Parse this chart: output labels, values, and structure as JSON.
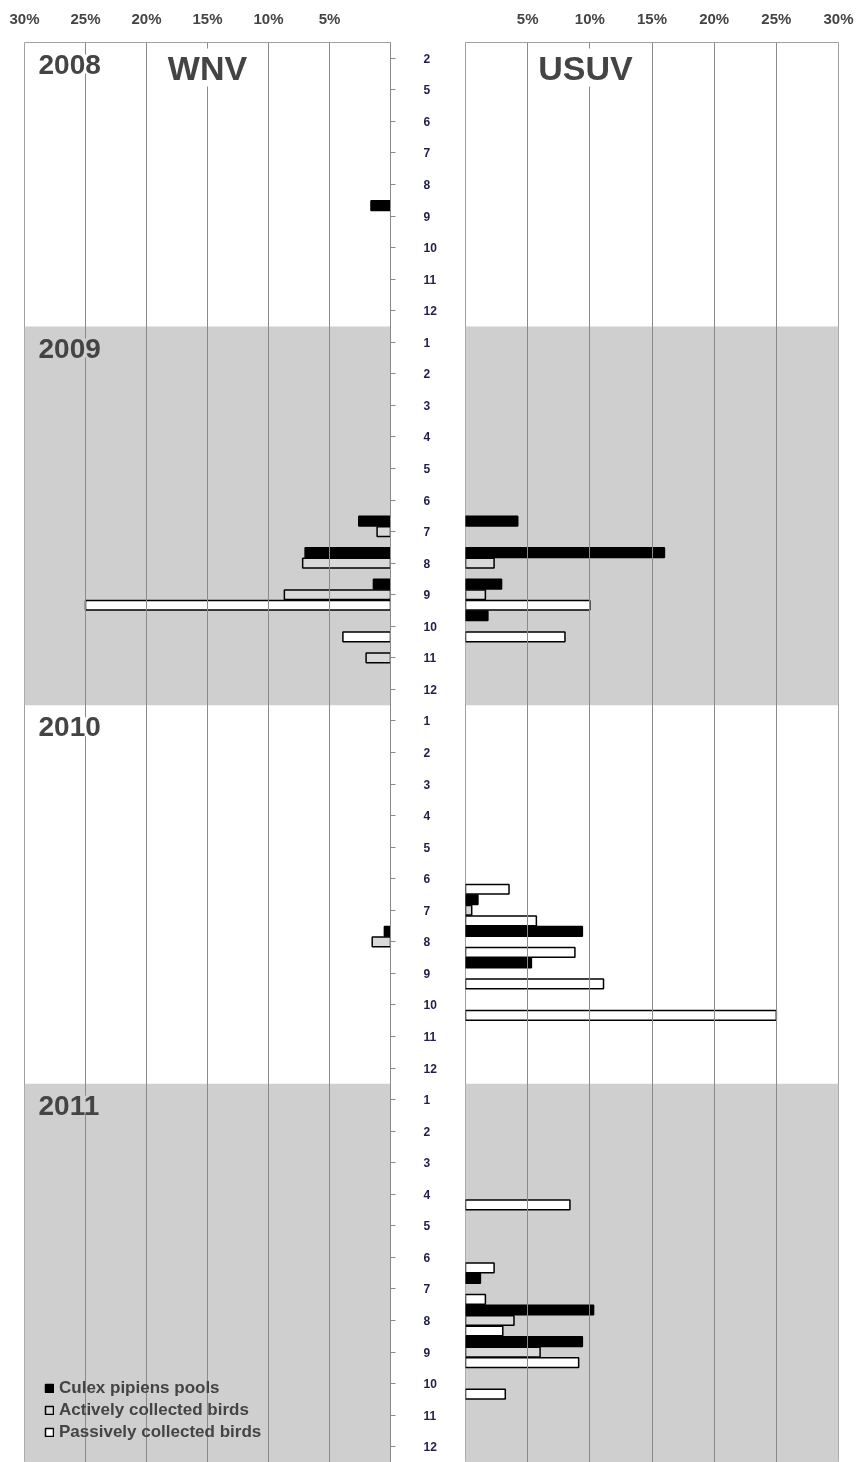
{
  "chart_data": [
    {
      "type": "bar",
      "orientation": "horizontal",
      "title": "WNV",
      "categories": [
        "2",
        "5",
        "6",
        "7",
        "8",
        "9",
        "10",
        "11",
        "12",
        "1",
        "2",
        "3",
        "4",
        "5",
        "6",
        "7",
        "8",
        "9",
        "10",
        "11",
        "12",
        "1",
        "2",
        "3",
        "4",
        "5",
        "6",
        "7",
        "8",
        "9",
        "10",
        "11",
        "12",
        "1",
        "2",
        "3",
        "4",
        "5",
        "6",
        "7",
        "8",
        "9",
        "10",
        "11",
        "12"
      ],
      "series": [
        {
          "name": "Culex pipiens pools",
          "color": "#000000",
          "values": [
            null,
            null,
            null,
            null,
            null,
            1.6,
            null,
            null,
            null,
            null,
            null,
            null,
            null,
            null,
            null,
            2.6,
            7.0,
            1.4,
            null,
            null,
            null,
            null,
            null,
            null,
            null,
            null,
            null,
            null,
            0.5,
            null,
            null,
            null,
            null,
            null,
            null,
            null,
            null,
            null,
            null,
            null,
            null,
            null,
            null,
            null,
            null
          ]
        },
        {
          "name": "Actively collected birds",
          "color": "#d9d9d9",
          "values": [
            null,
            null,
            null,
            null,
            null,
            null,
            null,
            null,
            null,
            null,
            null,
            null,
            null,
            null,
            null,
            1.1,
            7.2,
            8.7,
            null,
            2.0,
            null,
            null,
            null,
            null,
            null,
            null,
            null,
            null,
            1.5,
            null,
            null,
            null,
            null,
            null,
            null,
            null,
            null,
            null,
            null,
            null,
            null,
            null,
            null,
            null,
            null
          ]
        },
        {
          "name": "Passively collected birds",
          "color": "#ffffff",
          "values": [
            null,
            null,
            null,
            null,
            null,
            null,
            null,
            null,
            null,
            null,
            null,
            null,
            null,
            null,
            null,
            null,
            null,
            25,
            3.9,
            null,
            null,
            null,
            null,
            null,
            null,
            null,
            null,
            null,
            null,
            null,
            null,
            null,
            null,
            null,
            null,
            null,
            null,
            null,
            null,
            null,
            null,
            null,
            null,
            null,
            null
          ]
        }
      ],
      "xlim": [
        30,
        0
      ],
      "xticks": [
        {
          "value": 30,
          "label": "30%"
        },
        {
          "value": 25,
          "label": "25%"
        },
        {
          "value": 20,
          "label": "20%"
        },
        {
          "value": 15,
          "label": "15%"
        },
        {
          "value": 10,
          "label": "10%"
        },
        {
          "value": 5,
          "label": "5%"
        }
      ],
      "grid": "x",
      "legend": "bottom left",
      "annotations": [
        "2008",
        "2009",
        "2010",
        "2011"
      ]
    },
    {
      "type": "bar",
      "orientation": "horizontal",
      "title": "USUV",
      "categories": [
        "2",
        "5",
        "6",
        "7",
        "8",
        "9",
        "10",
        "11",
        "12",
        "1",
        "2",
        "3",
        "4",
        "5",
        "6",
        "7",
        "8",
        "9",
        "10",
        "11",
        "12",
        "1",
        "2",
        "3",
        "4",
        "5",
        "6",
        "7",
        "8",
        "9",
        "10",
        "11",
        "12",
        "1",
        "2",
        "3",
        "4",
        "5",
        "6",
        "7",
        "8",
        "9",
        "10",
        "11",
        "12"
      ],
      "series": [
        {
          "color": "#000000",
          "values": [
            null,
            null,
            null,
            null,
            null,
            null,
            null,
            null,
            null,
            null,
            null,
            null,
            null,
            null,
            null,
            4.2,
            16.0,
            2.9,
            1.8,
            null,
            null,
            null,
            null,
            null,
            null,
            null,
            null,
            1.0,
            9.4,
            5.3,
            null,
            null,
            null,
            null,
            null,
            null,
            null,
            null,
            null,
            1.2,
            10.3,
            9.4,
            null,
            null,
            null
          ]
        },
        {
          "color": "#d9d9d9",
          "values": [
            null,
            null,
            null,
            null,
            null,
            null,
            null,
            null,
            null,
            null,
            null,
            null,
            null,
            null,
            null,
            null,
            2.3,
            1.6,
            null,
            null,
            null,
            null,
            null,
            null,
            null,
            null,
            null,
            0.5,
            null,
            null,
            null,
            null,
            null,
            null,
            null,
            null,
            null,
            null,
            null,
            null,
            3.9,
            6.0,
            null,
            null,
            null
          ]
        },
        {
          "color": "#ffffff",
          "values": [
            null,
            null,
            null,
            null,
            null,
            null,
            null,
            null,
            null,
            null,
            null,
            null,
            null,
            null,
            null,
            null,
            null,
            10.0,
            8.0,
            null,
            null,
            null,
            null,
            null,
            null,
            null,
            3.5,
            5.7,
            8.8,
            11.1,
            25,
            null,
            null,
            null,
            null,
            null,
            8.4,
            null,
            2.3,
            1.6,
            3.0,
            9.1,
            3.2,
            null,
            null
          ]
        }
      ],
      "xlim": [
        0,
        30
      ],
      "xticks": [
        {
          "value": 5,
          "label": "5%"
        },
        {
          "value": 10,
          "label": "10%"
        },
        {
          "value": 15,
          "label": "15%"
        },
        {
          "value": 20,
          "label": "20%"
        },
        {
          "value": 25,
          "label": "25%"
        },
        {
          "value": 30,
          "label": "30%"
        }
      ],
      "grid": "x",
      "tick_labels": "x"
    }
  ]
}
